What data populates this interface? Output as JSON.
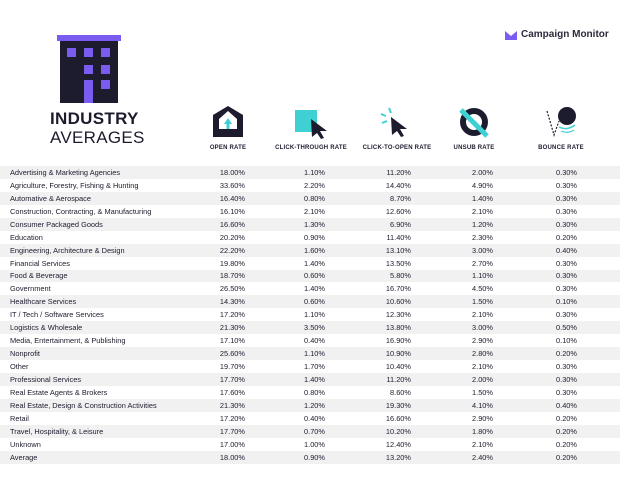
{
  "brand": {
    "name": "Campaign Monitor",
    "accent": "#7b5cf0"
  },
  "title": {
    "line1": "INDUSTRY",
    "line2": "AVERAGES"
  },
  "columns": [
    {
      "label": "OPEN RATE",
      "icon": "envelope-icon"
    },
    {
      "label": "CLICK-THROUGH RATE",
      "icon": "cursor-square-icon"
    },
    {
      "label": "CLICK-TO-OPEN RATE",
      "icon": "cursor-click-icon"
    },
    {
      "label": "UNSUB RATE",
      "icon": "unsubscribe-icon"
    },
    {
      "label": "BOUNCE RATE",
      "icon": "bounce-icon"
    }
  ],
  "rows": [
    {
      "name": "Advertising & Marketing Agencies",
      "values": [
        "18.00%",
        "1.10%",
        "11.20%",
        "2.00%",
        "0.30%"
      ]
    },
    {
      "name": "Agriculture, Forestry, Fishing & Hunting",
      "values": [
        "33.60%",
        "2.20%",
        "14.40%",
        "4.90%",
        "0.30%"
      ]
    },
    {
      "name": "Automative & Aerospace",
      "values": [
        "16.40%",
        "0.80%",
        "8.70%",
        "1.40%",
        "0.30%"
      ]
    },
    {
      "name": "Construction, Contracting, & Manufacturing",
      "values": [
        "16.10%",
        "2.10%",
        "12.60%",
        "2.10%",
        "0.30%"
      ]
    },
    {
      "name": "Consumer Packaged Goods",
      "values": [
        "16.60%",
        "1.30%",
        "6.90%",
        "1.20%",
        "0.30%"
      ]
    },
    {
      "name": "Education",
      "values": [
        "20.20%",
        "0.90%",
        "11.40%",
        "2.30%",
        "0.20%"
      ]
    },
    {
      "name": "Engineering, Architecture & Design",
      "values": [
        "22.20%",
        "1.60%",
        "13.10%",
        "3.00%",
        "0.40%"
      ]
    },
    {
      "name": "Financial Services",
      "values": [
        "19.80%",
        "1.40%",
        "13.50%",
        "2.70%",
        "0.30%"
      ]
    },
    {
      "name": "Food & Beverage",
      "values": [
        "18.70%",
        "0.60%",
        "5.80%",
        "1.10%",
        "0.30%"
      ]
    },
    {
      "name": "Government",
      "values": [
        "26.50%",
        "1.40%",
        "16.70%",
        "4.50%",
        "0.30%"
      ]
    },
    {
      "name": "Healthcare Services",
      "values": [
        "14.30%",
        "0.60%",
        "10.60%",
        "1.50%",
        "0.10%"
      ]
    },
    {
      "name": "IT / Tech / Software Services",
      "values": [
        "17.20%",
        "1.10%",
        "12.30%",
        "2.10%",
        "0.30%"
      ]
    },
    {
      "name": "Logistics & Wholesale",
      "values": [
        "21.30%",
        "3.50%",
        "13.80%",
        "3.00%",
        "0.50%"
      ]
    },
    {
      "name": "Media, Entertainment, & Publishing",
      "values": [
        "17.10%",
        "0.40%",
        "16.90%",
        "2.90%",
        "0.10%"
      ]
    },
    {
      "name": "Nonprofit",
      "values": [
        "25.60%",
        "1.10%",
        "10.90%",
        "2.80%",
        "0.20%"
      ]
    },
    {
      "name": "Other",
      "values": [
        "19.70%",
        "1.70%",
        "10.40%",
        "2.10%",
        "0.30%"
      ]
    },
    {
      "name": "Professional Services",
      "values": [
        "17.70%",
        "1.40%",
        "11.20%",
        "2.00%",
        "0.30%"
      ]
    },
    {
      "name": "Real Estate Agents & Brokers",
      "values": [
        "17.60%",
        "0.80%",
        "8.60%",
        "1.50%",
        "0.30%"
      ]
    },
    {
      "name": "Real Estate, Design & Construction Activities",
      "values": [
        "21.30%",
        "1.20%",
        "19.30%",
        "4.10%",
        "0.40%"
      ]
    },
    {
      "name": "Retail",
      "values": [
        "17.20%",
        "0.40%",
        "16.60%",
        "2.90%",
        "0.20%"
      ]
    },
    {
      "name": "Travel, Hospitality, & Leisure",
      "values": [
        "17.70%",
        "0.70%",
        "10.20%",
        "1.80%",
        "0.20%"
      ]
    },
    {
      "name": "Unknown",
      "values": [
        "17.00%",
        "1.00%",
        "12.40%",
        "2.10%",
        "0.20%"
      ]
    },
    {
      "name": "Average",
      "values": [
        "18.00%",
        "0.90%",
        "13.20%",
        "2.40%",
        "0.20%"
      ]
    }
  ]
}
